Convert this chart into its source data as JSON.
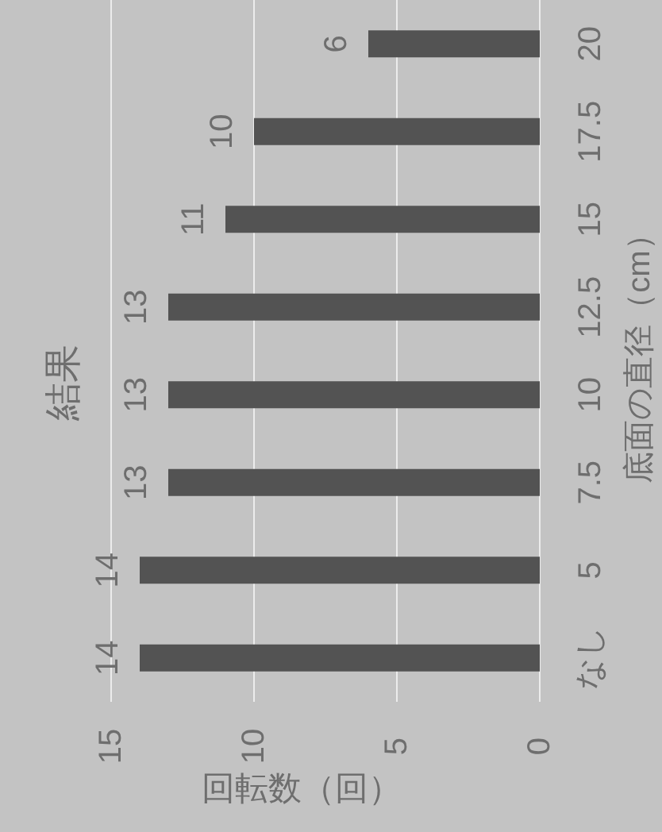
{
  "chart_data": {
    "type": "bar",
    "orientation": "horizontal",
    "title": "結果",
    "xlabel": "回転数（回）",
    "ylabel": "底面の直径（cm）",
    "categories": [
      "20",
      "17.5",
      "15",
      "12.5",
      "10",
      "7.5",
      "5",
      "なし"
    ],
    "values": [
      6,
      10,
      11,
      13,
      13,
      13,
      14,
      14
    ],
    "color": "#535353",
    "xlim": [
      15,
      0
    ],
    "xticks": [
      15,
      10,
      5,
      0
    ],
    "grid": "x",
    "data_labels": true
  }
}
